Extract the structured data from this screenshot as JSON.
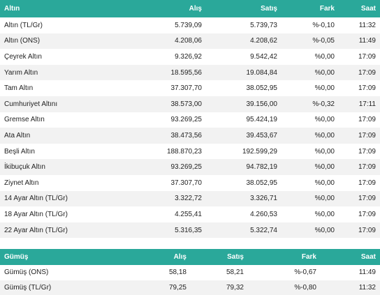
{
  "gold": {
    "headers": {
      "name": "Altın",
      "buy": "Alış",
      "sell": "Satış",
      "diff": "Fark",
      "time": "Saat"
    },
    "rows": [
      {
        "name": "Altın (TL/Gr)",
        "buy": "5.739,09",
        "sell": "5.739,73",
        "diff": "%-0,10",
        "time": "11:32"
      },
      {
        "name": "Altın (ONS)",
        "buy": "4.208,06",
        "sell": "4.208,62",
        "diff": "%-0,05",
        "time": "11:49"
      },
      {
        "name": "Çeyrek Altın",
        "buy": "9.326,92",
        "sell": "9.542,42",
        "diff": "%0,00",
        "time": "17:09"
      },
      {
        "name": "Yarım Altın",
        "buy": "18.595,56",
        "sell": "19.084,84",
        "diff": "%0,00",
        "time": "17:09"
      },
      {
        "name": "Tam Altın",
        "buy": "37.307,70",
        "sell": "38.052,95",
        "diff": "%0,00",
        "time": "17:09"
      },
      {
        "name": "Cumhuriyet Altını",
        "buy": "38.573,00",
        "sell": "39.156,00",
        "diff": "%-0,32",
        "time": "17:11"
      },
      {
        "name": "Gremse Altın",
        "buy": "93.269,25",
        "sell": "95.424,19",
        "diff": "%0,00",
        "time": "17:09"
      },
      {
        "name": "Ata Altın",
        "buy": "38.473,56",
        "sell": "39.453,67",
        "diff": "%0,00",
        "time": "17:09"
      },
      {
        "name": "Beşli Altın",
        "buy": "188.870,23",
        "sell": "192.599,29",
        "diff": "%0,00",
        "time": "17:09"
      },
      {
        "name": "İkibuçuk Altın",
        "buy": "93.269,25",
        "sell": "94.782,19",
        "diff": "%0,00",
        "time": "17:09"
      },
      {
        "name": "Ziynet Altın",
        "buy": "37.307,70",
        "sell": "38.052,95",
        "diff": "%0,00",
        "time": "17:09"
      },
      {
        "name": "14 Ayar Altın (TL/Gr)",
        "buy": "3.322,72",
        "sell": "3.326,71",
        "diff": "%0,00",
        "time": "17:09"
      },
      {
        "name": "18 Ayar Altın (TL/Gr)",
        "buy": "4.255,41",
        "sell": "4.260,53",
        "diff": "%0,00",
        "time": "17:09"
      },
      {
        "name": "22 Ayar Altın (TL/Gr)",
        "buy": "5.316,35",
        "sell": "5.322,74",
        "diff": "%0,00",
        "time": "17:09"
      }
    ]
  },
  "silver": {
    "headers": {
      "name": "Gümüş",
      "buy": "Alış",
      "sell": "Satış",
      "diff": "Fark",
      "time": "Saat"
    },
    "rows": [
      {
        "name": "Gümüş (ONS)",
        "buy": "58,18",
        "sell": "58,21",
        "diff": "%-0,67",
        "time": "11:49"
      },
      {
        "name": "Gümüş (TL/Gr)",
        "buy": "79,25",
        "sell": "79,32",
        "diff": "%-0,80",
        "time": "11:32"
      }
    ]
  },
  "colors": {
    "header_bg": "#2aa89a",
    "header_text": "#ffffff",
    "stripe": "#f2f2f2"
  }
}
